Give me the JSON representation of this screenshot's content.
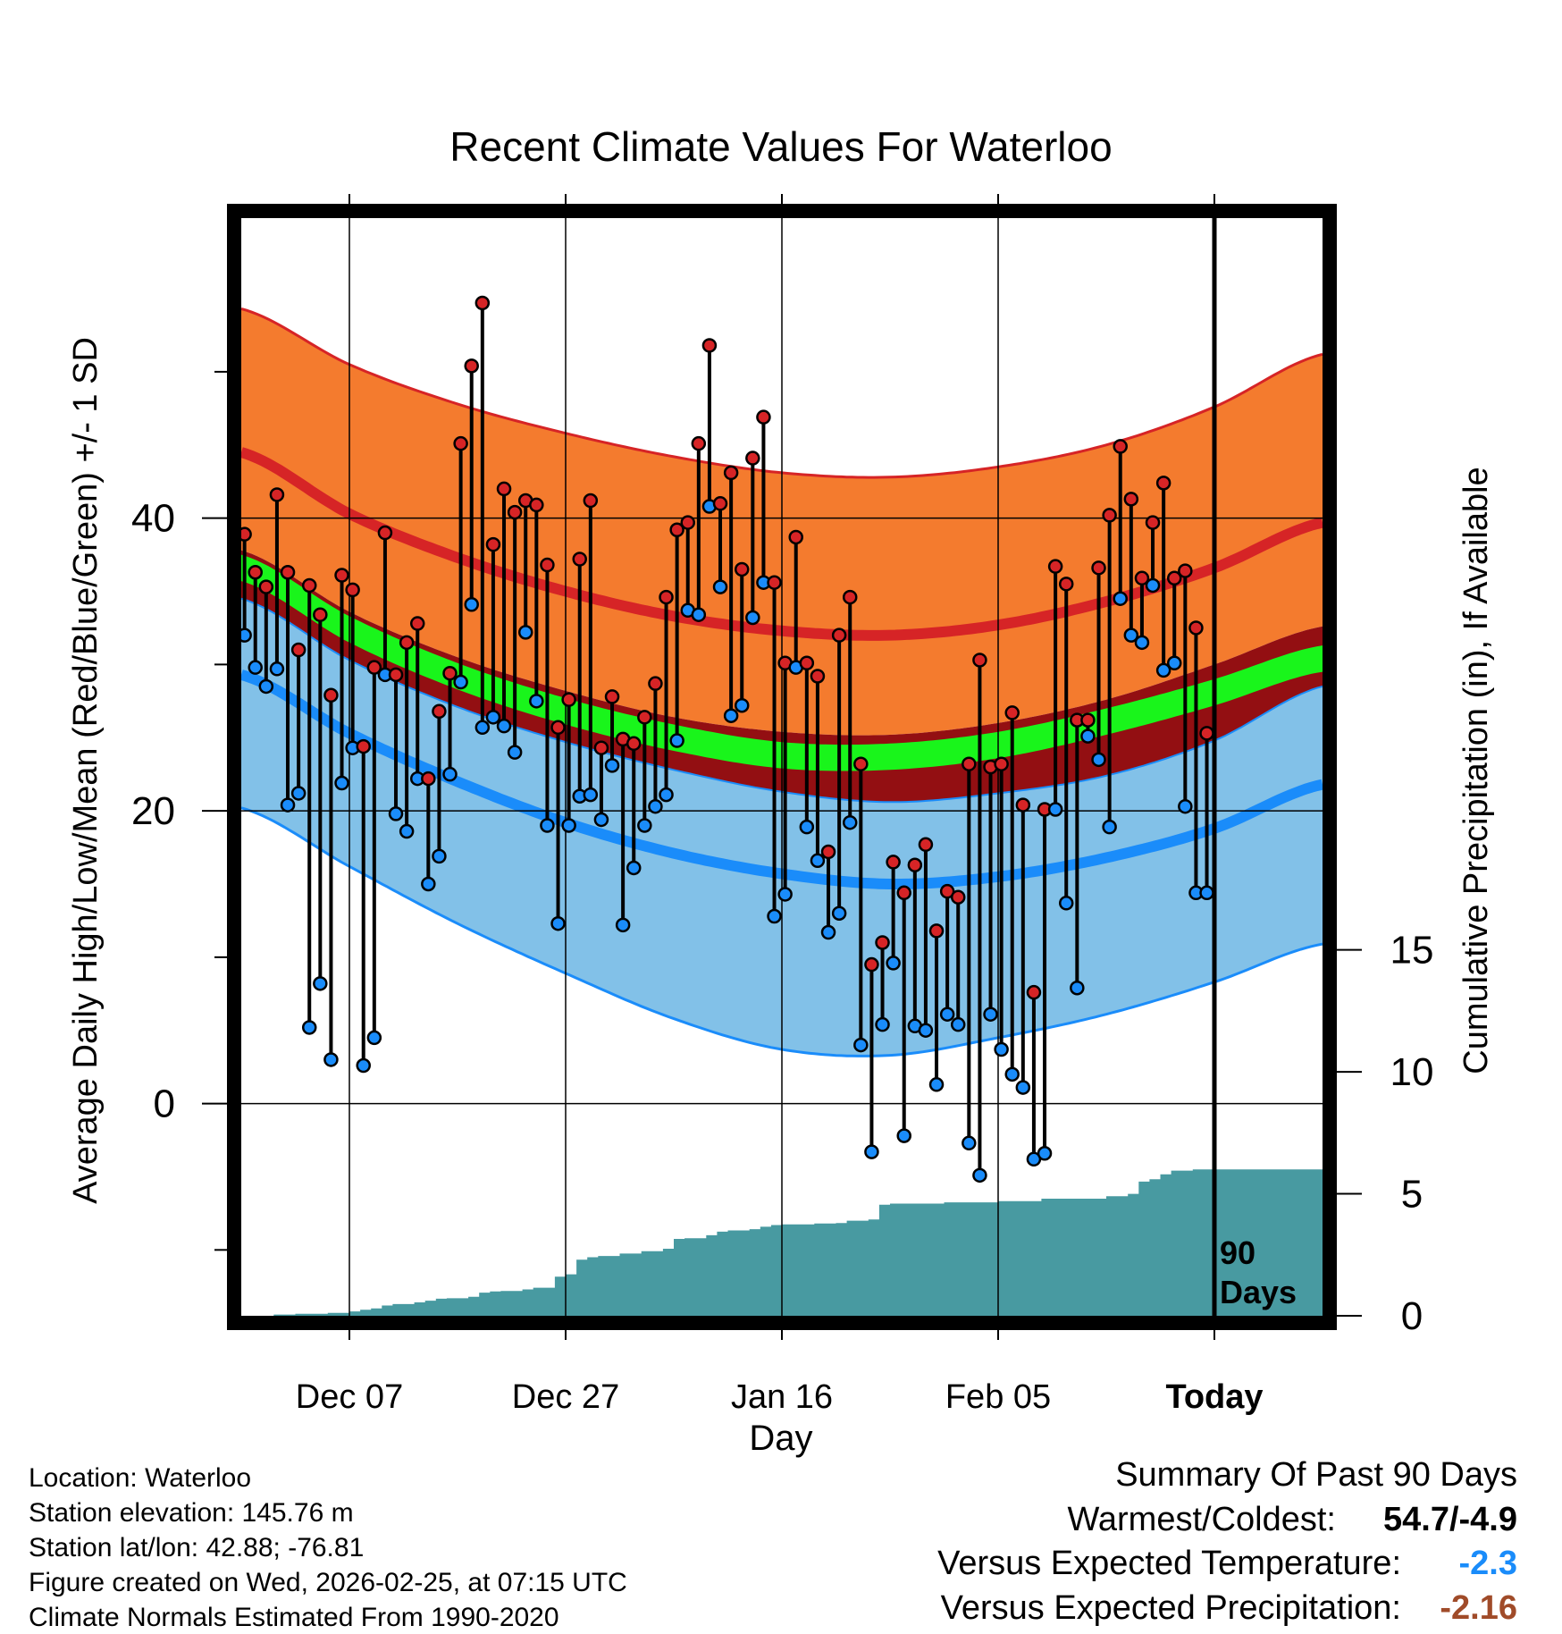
{
  "chart_data": {
    "type": "line",
    "title": "Recent Climate Values For Waterloo",
    "xlabel": "Day",
    "ylabel": "Average Daily High/Low/Mean (Red/Blue/Green) +/- 1 SD",
    "y2label": "Cumulative Precipitation (in), If Available",
    "ylim": [
      -14.5,
      60.5
    ],
    "y2lim": [
      0,
      45
    ],
    "x_range_days": [
      0,
      100
    ],
    "x_ticks": [
      {
        "day": 10,
        "label": "Dec 07"
      },
      {
        "day": 30,
        "label": "Dec 27"
      },
      {
        "day": 50,
        "label": "Jan 16"
      },
      {
        "day": 70,
        "label": "Feb 05"
      },
      {
        "day": 90,
        "label": "Today"
      }
    ],
    "y_ticks": [
      0,
      20,
      40
    ],
    "y_minor_ticks": [
      -10,
      10,
      30,
      50
    ],
    "y2_ticks": [
      0,
      5,
      10,
      15
    ],
    "today_marker_label": [
      "90",
      "Days"
    ],
    "colors": {
      "high_band": "#f47b2e",
      "high_line": "#d62426",
      "mean_band": "#930f12",
      "mean_line": "#19f51b",
      "low_band": "#82c1e8",
      "low_line": "#1a8cfa",
      "precip_fill": "#489aa1",
      "high_dot": "#d62426",
      "low_dot": "#1a8cfa",
      "blue_value": "#1a8cfa",
      "brown_value": "#a04b29"
    },
    "normals": {
      "days": [
        0,
        10,
        20,
        30,
        40,
        50,
        60,
        70,
        80,
        90,
        100
      ],
      "high_upper": [
        54.3,
        50.5,
        47.8,
        45.8,
        44.2,
        43.1,
        42.8,
        43.5,
        45.0,
        47.6,
        51.2
      ],
      "high_mean": [
        44.5,
        40.3,
        37.3,
        35.0,
        33.3,
        32.3,
        32.0,
        32.7,
        34.3,
        36.6,
        39.7
      ],
      "high_lower": [
        37.8,
        33.6,
        30.5,
        28.2,
        26.4,
        25.4,
        25.2,
        26.0,
        27.6,
        30.0,
        32.6
      ],
      "mean_upper": [
        37.5,
        33.3,
        30.1,
        27.7,
        25.9,
        24.7,
        24.6,
        25.4,
        27.0,
        29.0,
        31.3
      ],
      "mean_lower": [
        35.7,
        31.5,
        28.3,
        25.9,
        24.1,
        22.9,
        22.8,
        23.6,
        25.2,
        27.2,
        29.5
      ],
      "low_upper": [
        34.5,
        30.3,
        27.1,
        24.7,
        22.8,
        21.3,
        20.6,
        21.2,
        22.4,
        24.8,
        28.5
      ],
      "low_mean": [
        29.3,
        25.3,
        22.0,
        19.2,
        17.1,
        15.7,
        15.0,
        15.5,
        16.8,
        18.8,
        21.8
      ],
      "low_lower": [
        20.2,
        16.2,
        12.3,
        8.9,
        5.8,
        3.7,
        3.3,
        4.5,
        6.1,
        8.3,
        10.9
      ]
    },
    "daily": {
      "start_day": 0,
      "high": [
        38.9,
        36.3,
        35.3,
        41.6,
        36.3,
        31.0,
        35.4,
        33.4,
        27.9,
        36.1,
        35.1,
        24.4,
        29.8,
        39.0,
        29.3,
        31.5,
        32.8,
        22.2,
        26.8,
        29.4,
        45.1,
        50.4,
        54.7,
        38.2,
        42.0,
        40.4,
        41.2,
        40.9,
        36.8,
        25.7,
        27.6,
        37.2,
        41.2,
        24.3,
        27.8,
        24.9,
        24.6,
        26.4,
        28.7,
        34.6,
        39.2,
        39.7,
        45.1,
        51.8,
        41.0,
        43.1,
        36.5,
        44.1,
        46.9,
        35.6,
        30.1,
        38.7,
        30.1,
        29.2,
        17.2,
        32.0,
        34.6,
        23.2,
        9.5,
        11.0,
        16.5,
        14.4,
        16.3,
        17.7,
        11.8,
        14.5,
        14.1,
        23.2,
        30.3,
        23.0,
        23.2,
        26.7,
        20.4,
        7.6,
        20.1,
        36.7,
        35.5,
        26.2,
        26.2,
        36.6,
        40.2,
        44.9,
        41.3,
        35.9,
        39.7,
        42.4,
        35.9,
        36.4,
        32.5,
        25.3
      ],
      "low": [
        32.0,
        29.8,
        28.5,
        29.7,
        20.4,
        21.2,
        5.2,
        8.2,
        3.0,
        21.9,
        24.3,
        2.6,
        4.5,
        29.3,
        19.8,
        18.6,
        22.2,
        15.0,
        16.9,
        22.5,
        28.8,
        34.1,
        25.7,
        26.4,
        25.8,
        24.0,
        32.2,
        27.5,
        19.0,
        12.3,
        19.0,
        21.0,
        21.1,
        19.4,
        23.1,
        12.2,
        16.1,
        19.0,
        20.3,
        21.1,
        24.8,
        33.7,
        33.4,
        40.8,
        35.3,
        26.5,
        27.2,
        33.2,
        35.6,
        12.8,
        14.3,
        29.8,
        18.9,
        16.6,
        11.7,
        13.0,
        19.2,
        4.0,
        -3.3,
        5.4,
        9.6,
        -2.2,
        5.3,
        5.0,
        1.3,
        6.1,
        5.4,
        -2.7,
        -4.9,
        6.1,
        3.7,
        2.0,
        1.1,
        -3.8,
        -3.4,
        20.1,
        13.7,
        7.9,
        25.1,
        23.5,
        18.9,
        34.5,
        32.0,
        31.5,
        35.4,
        29.6,
        30.1,
        20.3,
        14.4,
        14.4
      ]
    },
    "precip": {
      "days": [
        0,
        3,
        5,
        8,
        10,
        11,
        12,
        13,
        14,
        16,
        17,
        18,
        19,
        21,
        22,
        23,
        24,
        26,
        27,
        29,
        30,
        31,
        32,
        33,
        35,
        37,
        39,
        40,
        41,
        43,
        44,
        45,
        47,
        48,
        49,
        50,
        51,
        53,
        55,
        56,
        58,
        59,
        60,
        65,
        70,
        74,
        80,
        82,
        83,
        84,
        85,
        86,
        88,
        100
      ],
      "values": [
        0.0,
        0.05,
        0.08,
        0.12,
        0.18,
        0.25,
        0.3,
        0.42,
        0.48,
        0.55,
        0.62,
        0.7,
        0.72,
        0.78,
        0.95,
        1.0,
        1.02,
        1.08,
        1.15,
        1.6,
        1.7,
        2.3,
        2.4,
        2.45,
        2.55,
        2.65,
        2.75,
        3.15,
        3.18,
        3.3,
        3.45,
        3.5,
        3.55,
        3.65,
        3.72,
        3.75,
        3.75,
        3.78,
        3.8,
        3.9,
        3.95,
        4.55,
        4.6,
        4.65,
        4.7,
        4.8,
        4.9,
        5.0,
        5.5,
        5.6,
        5.8,
        5.95,
        6.0,
        6.05
      ]
    }
  },
  "info": {
    "location": "Location: Waterloo",
    "elevation": "Station elevation: 145.76 m",
    "latlon": "Station lat/lon: 42.88; -76.81",
    "created": "Figure created on Wed, 2026-02-25, at 07:15 UTC",
    "normals": "Climate Normals Estimated From 1990-2020"
  },
  "summary": {
    "heading": "Summary Of Past 90 Days",
    "warmest_label": "Warmest/Coldest:",
    "warmest_value": "54.7/-4.9",
    "temp_label": "Versus Expected Temperature:",
    "temp_value": "-2.3",
    "precip_label": "Versus Expected Precipitation:",
    "precip_value": "-2.16"
  }
}
